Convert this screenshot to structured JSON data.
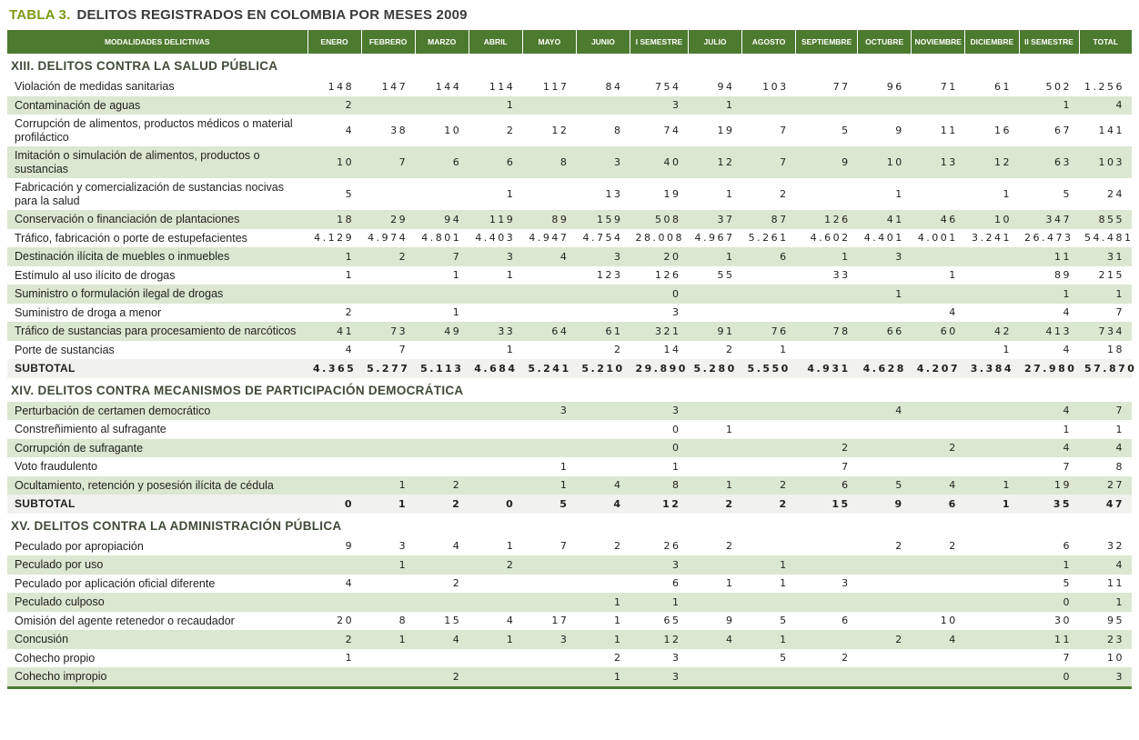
{
  "colors": {
    "header_green": "#4c7a2e",
    "row_green": "#dbe7d0",
    "title_green": "#7d9b16",
    "subtotal_bg": "#f1f1ed",
    "section_text": "#3f4a38"
  },
  "title": {
    "prefix": "TABLA 3.",
    "text": "DELITOS REGISTRADOS EN COLOMBIA POR MESES 2009"
  },
  "table": {
    "columns": [
      "MODALIDADES DELICTIVAS",
      "ENERO",
      "FEBRERO",
      "MARZO",
      "ABRIL",
      "MAYO",
      "JUNIO",
      "I SEMESTRE",
      "JULIO",
      "AGOSTO",
      "SEPTIEMBRE",
      "OCTUBRE",
      "NOVIEMBRE",
      "DICIEMBRE",
      "II SEMESTRE",
      "TOTAL"
    ],
    "sections": [
      {
        "header": "XIII. DELITOS CONTRA LA SALUD PÚBLICA",
        "rows": [
          {
            "label": "Violación de medidas sanitarias",
            "subtotal": false,
            "values": [
              "148",
              "147",
              "144",
              "114",
              "117",
              "84",
              "754",
              "94",
              "103",
              "77",
              "96",
              "71",
              "61",
              "502",
              "1.256"
            ]
          },
          {
            "label": "Contaminación de aguas",
            "subtotal": false,
            "values": [
              "2",
              "",
              "",
              "1",
              "",
              "",
              "3",
              "1",
              "",
              "",
              "",
              "",
              "",
              "1",
              "4"
            ]
          },
          {
            "label": "Corrupción de alimentos, productos médicos o material profiláctico",
            "subtotal": false,
            "values": [
              "4",
              "38",
              "10",
              "2",
              "12",
              "8",
              "74",
              "19",
              "7",
              "5",
              "9",
              "11",
              "16",
              "67",
              "141"
            ]
          },
          {
            "label": "Imitación o simulación de alimentos, productos o sustancias",
            "subtotal": false,
            "values": [
              "10",
              "7",
              "6",
              "6",
              "8",
              "3",
              "40",
              "12",
              "7",
              "9",
              "10",
              "13",
              "12",
              "63",
              "103"
            ]
          },
          {
            "label": "Fabricación y comercialización de sustancias nocivas para la salud",
            "subtotal": false,
            "values": [
              "5",
              "",
              "",
              "1",
              "",
              "13",
              "19",
              "1",
              "2",
              "",
              "1",
              "",
              "1",
              "5",
              "24"
            ]
          },
          {
            "label": "Conservación o financiación de plantaciones",
            "subtotal": false,
            "values": [
              "18",
              "29",
              "94",
              "119",
              "89",
              "159",
              "508",
              "37",
              "87",
              "126",
              "41",
              "46",
              "10",
              "347",
              "855"
            ]
          },
          {
            "label": "Tráfico, fabricación o porte de estupefacientes",
            "subtotal": false,
            "values": [
              "4.129",
              "4.974",
              "4.801",
              "4.403",
              "4.947",
              "4.754",
              "28.008",
              "4.967",
              "5.261",
              "4.602",
              "4.401",
              "4.001",
              "3.241",
              "26.473",
              "54.481"
            ]
          },
          {
            "label": "Destinación ilícita de muebles o inmuebles",
            "subtotal": false,
            "values": [
              "1",
              "2",
              "7",
              "3",
              "4",
              "3",
              "20",
              "1",
              "6",
              "1",
              "3",
              "",
              "",
              "11",
              "31"
            ]
          },
          {
            "label": "Estímulo al uso ilícito de drogas",
            "subtotal": false,
            "values": [
              "1",
              "",
              "1",
              "1",
              "",
              "123",
              "126",
              "55",
              "",
              "33",
              "",
              "1",
              "",
              "89",
              "215"
            ]
          },
          {
            "label": "Suministro o formulación ilegal de drogas",
            "subtotal": false,
            "values": [
              "",
              "",
              "",
              "",
              "",
              "",
              "0",
              "",
              "",
              "",
              "1",
              "",
              "",
              "1",
              "1"
            ]
          },
          {
            "label": "Suministro de droga a menor",
            "subtotal": false,
            "values": [
              "2",
              "",
              "1",
              "",
              "",
              "",
              "3",
              "",
              "",
              "",
              "",
              "4",
              "",
              "4",
              "7"
            ]
          },
          {
            "label": "Tráfico de sustancias para procesamiento de narcóticos",
            "subtotal": false,
            "values": [
              "41",
              "73",
              "49",
              "33",
              "64",
              "61",
              "321",
              "91",
              "76",
              "78",
              "66",
              "60",
              "42",
              "413",
              "734"
            ]
          },
          {
            "label": "Porte de sustancias",
            "subtotal": false,
            "values": [
              "4",
              "7",
              "",
              "1",
              "",
              "2",
              "14",
              "2",
              "1",
              "",
              "",
              "",
              "1",
              "4",
              "18"
            ]
          },
          {
            "label": "SUBTOTAL",
            "subtotal": true,
            "values": [
              "4.365",
              "5.277",
              "5.113",
              "4.684",
              "5.241",
              "5.210",
              "29.890",
              "5.280",
              "5.550",
              "4.931",
              "4.628",
              "4.207",
              "3.384",
              "27.980",
              "57.870"
            ]
          }
        ]
      },
      {
        "header": "XIV. DELITOS CONTRA MECANISMOS DE PARTICIPACIÓN DEMOCRÁTICA",
        "rows": [
          {
            "label": "Perturbación de certamen democrático",
            "subtotal": false,
            "values": [
              "",
              "",
              "",
              "",
              "3",
              "",
              "3",
              "",
              "",
              "",
              "4",
              "",
              "",
              "4",
              "7"
            ]
          },
          {
            "label": "Constreñimiento al sufragante",
            "subtotal": false,
            "values": [
              "",
              "",
              "",
              "",
              "",
              "",
              "0",
              "1",
              "",
              "",
              "",
              "",
              "",
              "1",
              "1"
            ]
          },
          {
            "label": "Corrupción de sufragante",
            "subtotal": false,
            "values": [
              "",
              "",
              "",
              "",
              "",
              "",
              "0",
              "",
              "",
              "2",
              "",
              "2",
              "",
              "4",
              "4"
            ]
          },
          {
            "label": "Voto fraudulento",
            "subtotal": false,
            "values": [
              "",
              "",
              "",
              "",
              "1",
              "",
              "1",
              "",
              "",
              "7",
              "",
              "",
              "",
              "7",
              "8"
            ]
          },
          {
            "label": "Ocultamiento, retención y posesión ilícita de cédula",
            "subtotal": false,
            "values": [
              "",
              "1",
              "2",
              "",
              "1",
              "4",
              "8",
              "1",
              "2",
              "6",
              "5",
              "4",
              "1",
              "19",
              "27"
            ]
          },
          {
            "label": "SUBTOTAL",
            "subtotal": true,
            "values": [
              "0",
              "1",
              "2",
              "0",
              "5",
              "4",
              "12",
              "2",
              "2",
              "15",
              "9",
              "6",
              "1",
              "35",
              "47"
            ]
          }
        ]
      },
      {
        "header": "XV. DELITOS CONTRA LA ADMINISTRACIÓN PÚBLICA",
        "rows": [
          {
            "label": "Peculado por apropiación",
            "subtotal": false,
            "values": [
              "9",
              "3",
              "4",
              "1",
              "7",
              "2",
              "26",
              "2",
              "",
              "",
              "2",
              "2",
              "",
              "6",
              "32"
            ]
          },
          {
            "label": "Peculado por uso",
            "subtotal": false,
            "values": [
              "",
              "1",
              "",
              "2",
              "",
              "",
              "3",
              "",
              "1",
              "",
              "",
              "",
              "",
              "1",
              "4"
            ]
          },
          {
            "label": "Peculado por aplicación oficial diferente",
            "subtotal": false,
            "values": [
              "4",
              "",
              "2",
              "",
              "",
              "",
              "6",
              "1",
              "1",
              "3",
              "",
              "",
              "",
              "5",
              "11"
            ]
          },
          {
            "label": "Peculado culposo",
            "subtotal": false,
            "values": [
              "",
              "",
              "",
              "",
              "",
              "1",
              "1",
              "",
              "",
              "",
              "",
              "",
              "",
              "0",
              "1"
            ]
          },
          {
            "label": "Omisión del agente retenedor o recaudador",
            "subtotal": false,
            "values": [
              "20",
              "8",
              "15",
              "4",
              "17",
              "1",
              "65",
              "9",
              "5",
              "6",
              "",
              "10",
              "",
              "30",
              "95"
            ]
          },
          {
            "label": "Concusión",
            "subtotal": false,
            "values": [
              "2",
              "1",
              "4",
              "1",
              "3",
              "1",
              "12",
              "4",
              "1",
              "",
              "2",
              "4",
              "",
              "11",
              "23"
            ]
          },
          {
            "label": "Cohecho propio",
            "subtotal": false,
            "values": [
              "1",
              "",
              "",
              "",
              "",
              "2",
              "3",
              "",
              "5",
              "2",
              "",
              "",
              "",
              "7",
              "10"
            ]
          },
          {
            "label": "Cohecho impropio",
            "subtotal": false,
            "values": [
              "",
              "",
              "2",
              "",
              "",
              "1",
              "3",
              "",
              "",
              "",
              "",
              "",
              "",
              "0",
              "3"
            ]
          }
        ]
      }
    ]
  }
}
